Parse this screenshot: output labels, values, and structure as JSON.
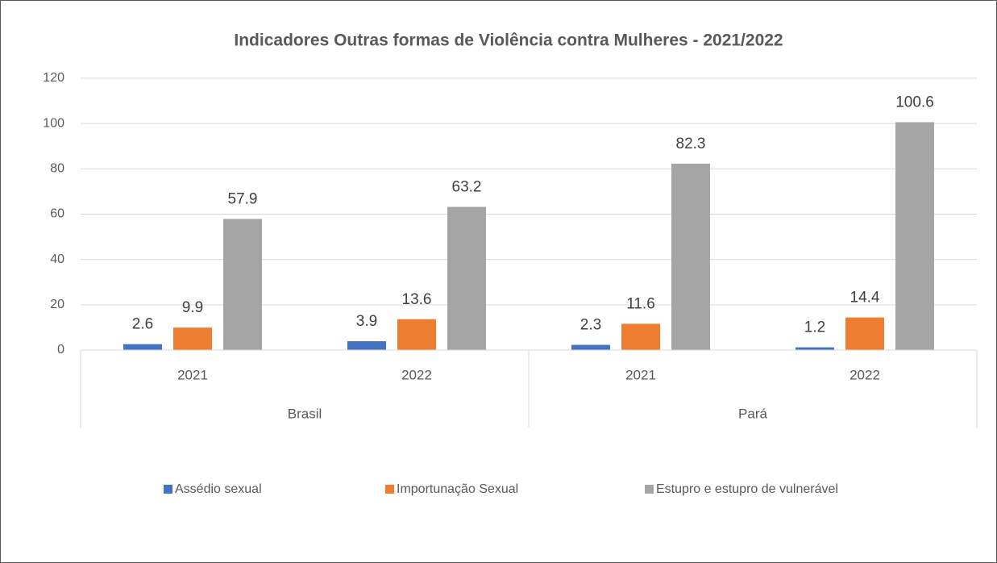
{
  "chart_data": {
    "type": "bar",
    "title": "Indicadores Outras formas de Violência contra Mulheres - 2021/2022",
    "categories": [
      "2021",
      "2022",
      "2021",
      "2022"
    ],
    "groups": [
      "Brasil",
      "Pará"
    ],
    "series": [
      {
        "name": "Assédio sexual",
        "color": "#4472c4",
        "values": [
          2.6,
          3.9,
          2.3,
          1.2
        ]
      },
      {
        "name": "Importunação Sexual",
        "color": "#ed7d31",
        "values": [
          9.9,
          13.6,
          11.6,
          14.4
        ]
      },
      {
        "name": "Estupro e estupro de vulnerável",
        "color": "#a5a5a5",
        "values": [
          57.9,
          63.2,
          82.3,
          100.6
        ]
      }
    ],
    "ylim": [
      0,
      120
    ],
    "yticks": [
      0,
      20,
      40,
      60,
      80,
      100,
      120
    ],
    "grid": true,
    "legend": "bottom"
  }
}
